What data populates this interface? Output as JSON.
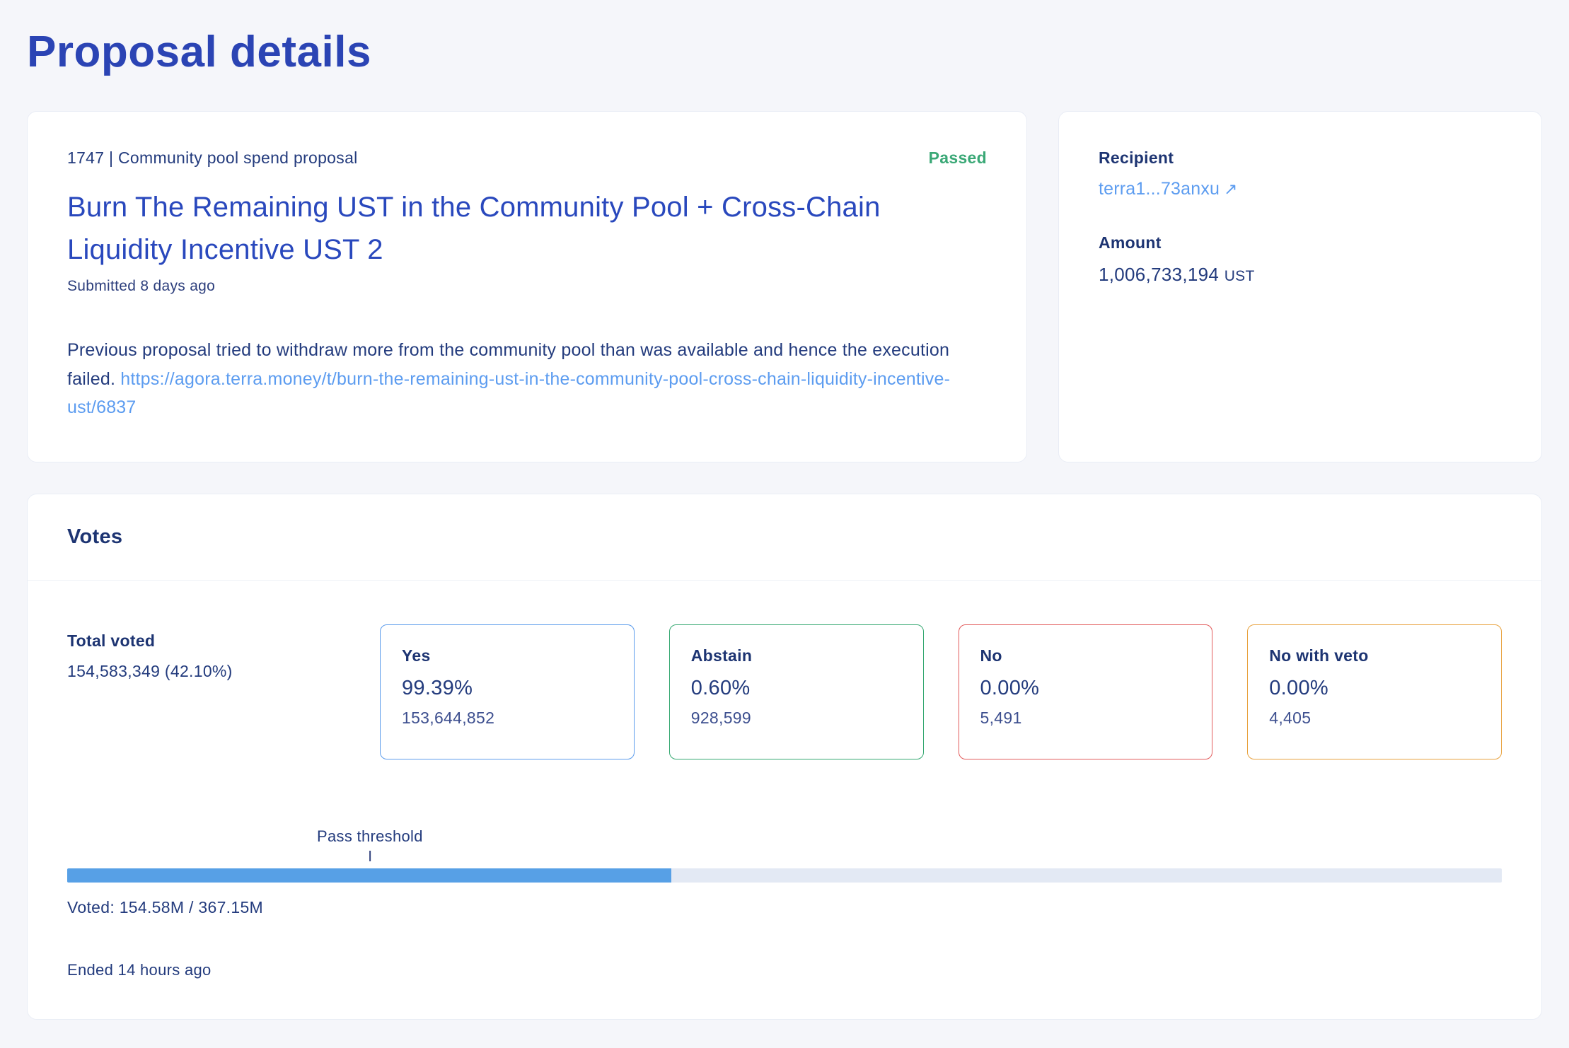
{
  "page": {
    "title": "Proposal details",
    "background_color": "#f5f6fa"
  },
  "proposal": {
    "meta": "1747 | Community pool spend proposal",
    "status": "Passed",
    "status_color": "#3aa876",
    "title": "Burn The Remaining UST in the Community Pool + Cross-Chain Liquidity Incentive UST 2",
    "submitted": "Submitted 8 days ago",
    "description": "Previous proposal tried to withdraw more from the community pool than was available and hence the execution failed.",
    "link": "https://agora.terra.money/t/burn-the-remaining-ust-in-the-community-pool-cross-chain-liquidity-incentive-ust/6837"
  },
  "details": {
    "recipient_label": "Recipient",
    "recipient_value": "terra1...73anxu",
    "external_link_icon": "↗",
    "amount_label": "Amount",
    "amount_value": "1,006,733,194",
    "amount_unit": "UST"
  },
  "votes": {
    "header": "Votes",
    "total_label": "Total voted",
    "total_value": "154,583,349 (42.10%)",
    "options": [
      {
        "label": "Yes",
        "percent": "99.39%",
        "count": "153,644,852",
        "border_color": "#5c9cec"
      },
      {
        "label": "Abstain",
        "percent": "0.60%",
        "count": "928,599",
        "border_color": "#35a871"
      },
      {
        "label": "No",
        "percent": "0.00%",
        "count": "5,491",
        "border_color": "#e25a5a"
      },
      {
        "label": "No with veto",
        "percent": "0.00%",
        "count": "4,405",
        "border_color": "#e8a13c"
      }
    ],
    "threshold_label": "Pass threshold",
    "threshold_percent": 21.1,
    "progress_percent": 42.1,
    "progress_fill_color": "#57a0e6",
    "progress_track_color": "#e3e9f4",
    "voted_text": "Voted: 154.58M / 367.15M",
    "ended_text": "Ended 14 hours ago"
  }
}
